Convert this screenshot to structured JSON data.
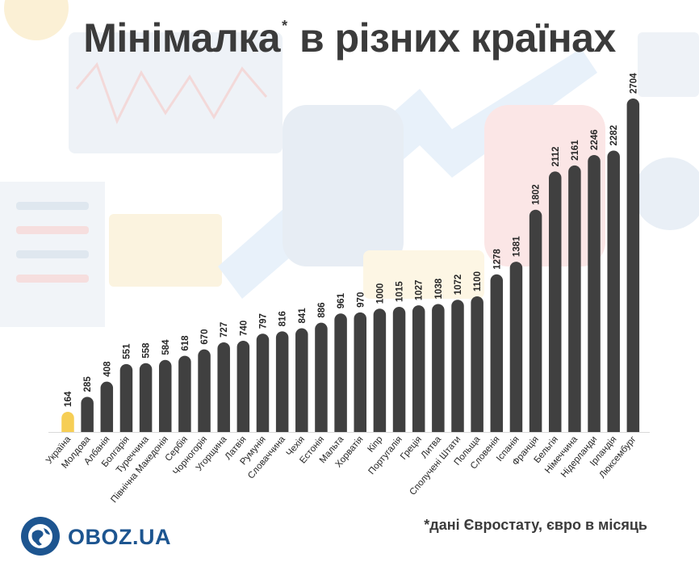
{
  "title_main": "Мінімалка",
  "title_star": "*",
  "title_rest": " в різних країнах",
  "footnote": "*дані Євростату, євро в місяць",
  "logo": {
    "text": "OBOZ.UA",
    "icon": "globe-icon"
  },
  "colors": {
    "highlight": "#f6ce55",
    "bar": "#404040",
    "text": "#3b3b3b",
    "brand": "#1d5590"
  },
  "chart_data": {
    "type": "bar",
    "title": "Мінімалка в різних країнах",
    "xlabel": "",
    "ylabel": "",
    "ylim": [
      0,
      2704
    ],
    "grid": false,
    "highlight_category": "Україна",
    "categories": [
      "Україна",
      "Молдова",
      "Албанія",
      "Болгарія",
      "Туреччина",
      "Північна Македонія",
      "Сербія",
      "Чорногорія",
      "Угорщина",
      "Латвія",
      "Румунія",
      "Словаччина",
      "Чехія",
      "Естонія",
      "Мальта",
      "Хорватія",
      "Кіпр",
      "Португалія",
      "Греція",
      "Литва",
      "Сполучені Штати",
      "Польща",
      "Словенія",
      "Іспанія",
      "Франція",
      "Бельгія",
      "Німеччина",
      "Нідерланди",
      "Ірландія",
      "Люксембург"
    ],
    "values": [
      164,
      285,
      408,
      551,
      558,
      584,
      618,
      670,
      727,
      740,
      797,
      816,
      841,
      886,
      961,
      970,
      1000,
      1015,
      1027,
      1038,
      1072,
      1100,
      1278,
      1381,
      1802,
      2112,
      2161,
      2246,
      2282,
      2704
    ]
  }
}
